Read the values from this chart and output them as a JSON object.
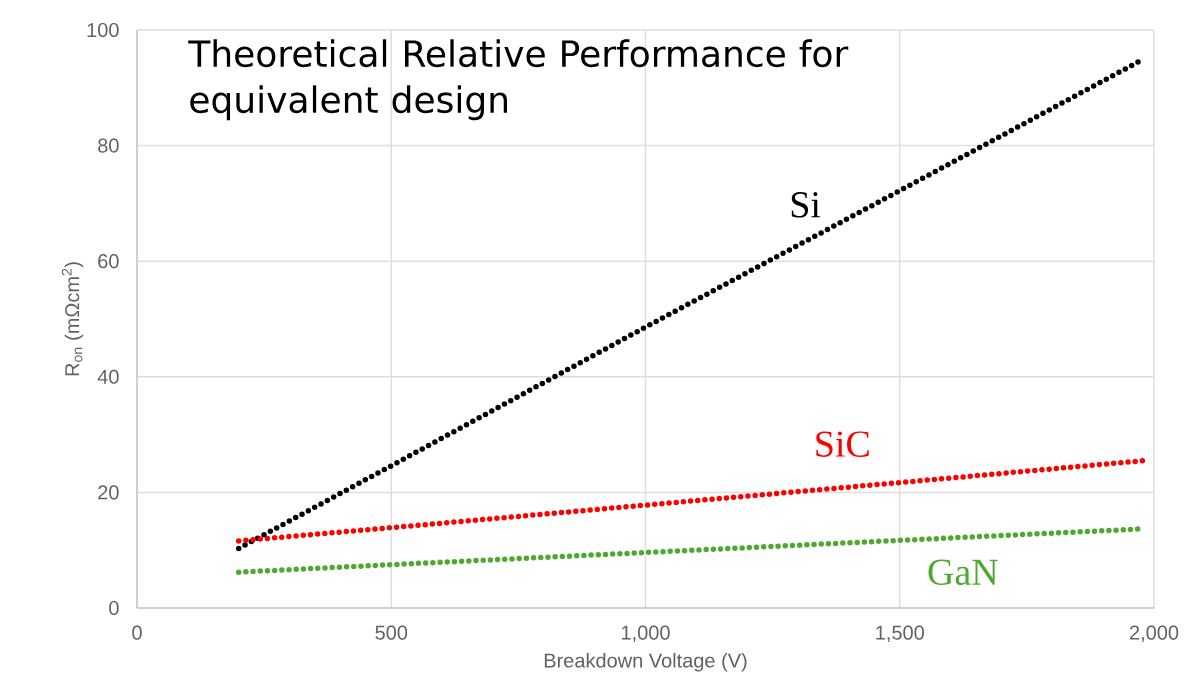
{
  "chart_data": {
    "type": "line",
    "title": "Theoretical Relative Performance for equivalent design",
    "xlabel": "Breakdown Voltage (V)",
    "ylabel": "R$_{on}$ (mΩcm$^{2}$)",
    "x": [
      200,
      500,
      1000,
      1500,
      1980
    ],
    "series": [
      {
        "name": "Si",
        "color": "#000000",
        "values": [
          10.3,
          24.6,
          48.6,
          72.2,
          95
        ]
      },
      {
        "name": "SiC",
        "color": "#ff0000",
        "values": [
          11.6,
          13.9,
          17.8,
          21.7,
          25.5
        ]
      },
      {
        "name": "GaN",
        "color": "#4fa830",
        "values": [
          6.2,
          7.5,
          9.6,
          11.7,
          13.7
        ]
      }
    ],
    "xlim": [
      0,
      2000
    ],
    "ylim": [
      0,
      100
    ],
    "xticks": [
      {
        "value": 0,
        "label": "0"
      },
      {
        "value": 500,
        "label": "500"
      },
      {
        "value": 1000,
        "label": "1,000"
      },
      {
        "value": 1500,
        "label": "1,500"
      },
      {
        "value": 2000,
        "label": "2,000"
      }
    ],
    "yticks": [
      0,
      20,
      40,
      60,
      80,
      100
    ],
    "grid": true,
    "marker": "none",
    "line_style": "dotted"
  }
}
